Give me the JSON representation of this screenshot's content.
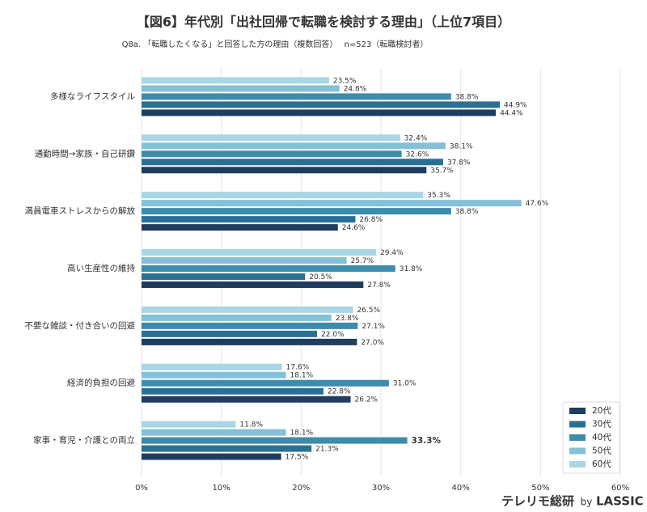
{
  "chart_data": {
    "type": "hbar",
    "title": "【図6】年代別「出社回帰で転職を検討する理由」（上位7項目）",
    "subtitle": "Q8a. 「転職したくなる」と回答した方の理由（複数回答）　 n=523（転職検討者）",
    "categories": [
      "多様なライフスタイル",
      "通勤時間→家族・自己研鑽",
      "満員電車ストレスからの解放",
      "高い生産性の維持",
      "不要な雑談・付き合いの回避",
      "経済的負担の回避",
      "家事・育児・介護との両立"
    ],
    "series": [
      {
        "name": "20代",
        "color": "#1f3d5e",
        "values": [
          44.4,
          35.7,
          24.6,
          27.8,
          27.0,
          26.2,
          17.5
        ],
        "value_labels": [
          "44.4%",
          "35.7%",
          "24.6%",
          "27.8%",
          "27.0%",
          "26.2%",
          "17.5%"
        ]
      },
      {
        "name": "30代",
        "color": "#2a7095",
        "values": [
          44.9,
          37.8,
          26.8,
          20.5,
          22.0,
          22.8,
          21.3
        ],
        "value_labels": [
          "44.9%",
          "37.8%",
          "26.8%",
          "20.5%",
          "22.0%",
          "22.8%",
          "21.3%"
        ]
      },
      {
        "name": "40代",
        "color": "#3d8cab",
        "values": [
          38.8,
          32.6,
          38.8,
          31.8,
          27.1,
          31.0,
          33.3
        ],
        "value_labels": [
          "38.8%",
          "32.6%",
          "38.8%",
          "31.8%",
          "27.1%",
          "31.0%",
          "33.3%"
        ],
        "highlight": {
          "index": 6,
          "color": "#e0703e"
        }
      },
      {
        "name": "50代",
        "color": "#84c0d8",
        "values": [
          24.8,
          38.1,
          47.6,
          25.7,
          23.8,
          18.1,
          18.1
        ],
        "value_labels": [
          "24.8%",
          "38.1%",
          "47.6%",
          "25.7%",
          "23.8%",
          "18.1%",
          "18.1%"
        ]
      },
      {
        "name": "60代",
        "color": "#a9d6e4",
        "values": [
          23.5,
          32.4,
          35.3,
          29.4,
          26.5,
          17.6,
          11.8
        ],
        "value_labels": [
          "23.5%",
          "32.4%",
          "35.3%",
          "29.4%",
          "26.5%",
          "17.6%",
          "11.8%"
        ]
      }
    ],
    "xlim": [
      0,
      60
    ],
    "xticks": [
      {
        "value": 0,
        "label": "0%"
      },
      {
        "value": 10,
        "label": "10%"
      },
      {
        "value": 20,
        "label": "20%"
      },
      {
        "value": 30,
        "label": "30%"
      },
      {
        "value": 40,
        "label": "40%"
      },
      {
        "value": 50,
        "label": "50%"
      },
      {
        "value": 60,
        "label": "60%"
      }
    ],
    "grid": true,
    "legend": "lower right",
    "footer": {
      "brand": "テレリモ総研",
      "by": "by",
      "company": "LASSIC"
    }
  }
}
